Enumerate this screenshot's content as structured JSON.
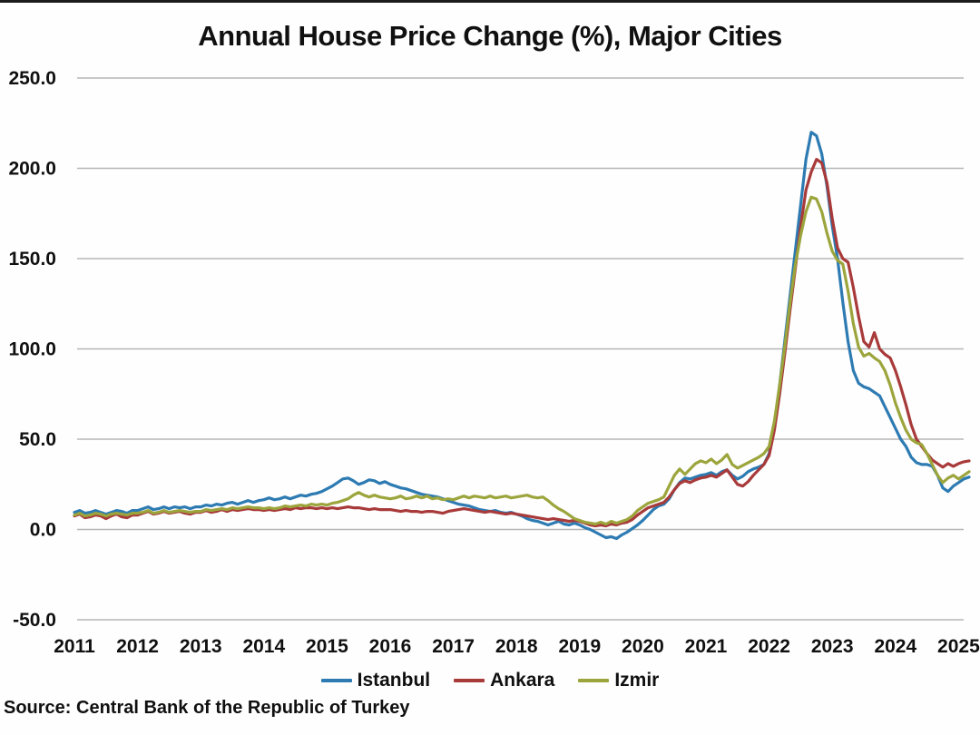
{
  "page": {
    "title": "Annual House Price Change (%), Major Cities",
    "source": "Source: Central Bank of the Republic of Turkey"
  },
  "chart_data": {
    "type": "line",
    "title": "Annual House Price Change (%), Major Cities",
    "xlabel": "",
    "ylabel": "",
    "ylim": [
      -50,
      250
    ],
    "ytick_step": 50,
    "ytick_decimals": 1,
    "x_years": [
      2011,
      2012,
      2013,
      2014,
      2015,
      2016,
      2017,
      2018,
      2019,
      2020,
      2021,
      2022,
      2023,
      2024,
      2025
    ],
    "points_per_year": 12,
    "start_year": 2011,
    "grid": "horizontal",
    "legend_position": "bottom",
    "grid_color": "#b5b5b5",
    "text_color": "#101010",
    "source": "Source: Central Bank of the Republic of Turkey",
    "series": [
      {
        "name": "Istanbul",
        "color": "#2d7bb2",
        "values": [
          9.5,
          10.5,
          9,
          9.5,
          10.5,
          9.5,
          8.5,
          9.5,
          10.5,
          10,
          9,
          10.5,
          10.5,
          11.5,
          12.5,
          11,
          11.5,
          12.5,
          11.5,
          12.5,
          12,
          12.5,
          11.5,
          12.5,
          12.5,
          13.5,
          13,
          14,
          13.5,
          14.5,
          15,
          14,
          15,
          16,
          15,
          16,
          16.5,
          17.5,
          16.5,
          17,
          18,
          17,
          18,
          19,
          18.5,
          19.5,
          20,
          21,
          22.5,
          24,
          26,
          28,
          28.5,
          27,
          25,
          26,
          27.5,
          27,
          25.5,
          26.5,
          25,
          24,
          23,
          22.5,
          21.5,
          20.5,
          19.5,
          19,
          18.5,
          18,
          17,
          16,
          15,
          14,
          13.5,
          13,
          12,
          11,
          10.5,
          10,
          10.5,
          9.5,
          9,
          9.5,
          8.5,
          7.5,
          6,
          5,
          4.5,
          3.5,
          2.5,
          3.5,
          4.5,
          3,
          2.5,
          3.5,
          2.5,
          1,
          0,
          -1.5,
          -3,
          -4.5,
          -4,
          -5,
          -3,
          -1.5,
          0.5,
          2.5,
          5,
          8,
          11,
          13,
          14,
          17,
          22,
          26,
          28.5,
          28,
          29,
          30,
          30.5,
          31.5,
          30,
          32,
          33,
          30,
          28,
          29.5,
          32,
          33.5,
          34.5,
          36,
          42,
          58,
          80,
          105,
          130,
          155,
          180,
          205,
          220,
          218,
          208,
          190,
          168,
          150,
          126,
          104,
          88,
          81,
          79,
          78,
          76,
          74,
          68,
          62,
          56,
          50,
          46,
          40,
          37,
          36,
          36,
          35,
          30,
          23,
          21,
          24,
          26,
          28,
          29
        ]
      },
      {
        "name": "Ankara",
        "color": "#a83a3a",
        "values": [
          7.5,
          8.5,
          6.5,
          7,
          8,
          7.5,
          6,
          7.5,
          8.5,
          7,
          6.5,
          8,
          8,
          9,
          10,
          8.5,
          9,
          10,
          9,
          9.5,
          10,
          9,
          8.5,
          9.5,
          9.5,
          10.5,
          9.5,
          10,
          11,
          10,
          11,
          10.5,
          11,
          11.5,
          11,
          11,
          10.5,
          11,
          10.5,
          11,
          11.5,
          11,
          12,
          11.5,
          12,
          12,
          11.5,
          12,
          11.5,
          12,
          11.5,
          12,
          12.5,
          12,
          12,
          11.5,
          11,
          11.5,
          11,
          11,
          11,
          10.5,
          10,
          10.5,
          10,
          10,
          9.5,
          10,
          10,
          9.5,
          9,
          10,
          10.5,
          11,
          11.5,
          11,
          10.5,
          10,
          9.5,
          10,
          9.5,
          9,
          8.5,
          9,
          8.5,
          8,
          7.5,
          7,
          6.5,
          6,
          5.5,
          6,
          5.5,
          5,
          4.5,
          5,
          4.5,
          3.5,
          2.5,
          2,
          2.5,
          2,
          3,
          2.5,
          3.5,
          4,
          5.5,
          8,
          10,
          12,
          13,
          14,
          15,
          18,
          22,
          25.5,
          27,
          26,
          27.5,
          28.5,
          29,
          30,
          29,
          31,
          33,
          29,
          25,
          24,
          26.5,
          30,
          33,
          36,
          41,
          55,
          75,
          98,
          122,
          145,
          168,
          188,
          198,
          205,
          203,
          192,
          172,
          156,
          150,
          148,
          134,
          118,
          104,
          101,
          109,
          100,
          97,
          95,
          88,
          79,
          69,
          58,
          50,
          46,
          42,
          38.5,
          36.5,
          34.5,
          36.5,
          35,
          36.5,
          37.5,
          38
        ]
      },
      {
        "name": "Izmir",
        "color": "#9ca53c",
        "values": [
          8,
          9,
          7.5,
          8,
          9,
          8.5,
          7.5,
          8.5,
          9,
          8.5,
          8,
          9,
          9,
          9.5,
          10.5,
          9,
          9.5,
          10.5,
          9.5,
          10,
          10.5,
          10,
          9.5,
          10,
          10,
          11,
          10.5,
          11,
          11.5,
          11,
          12,
          11.5,
          12,
          12.5,
          12,
          12,
          11.5,
          12,
          11.5,
          12,
          13,
          12.5,
          13,
          13.5,
          13,
          14,
          13.5,
          14,
          13.5,
          14.5,
          15,
          16,
          17,
          19,
          20.5,
          19,
          18,
          19,
          18,
          17.5,
          17,
          17.5,
          18.5,
          17,
          17.5,
          18.5,
          17.5,
          18.5,
          17,
          17.5,
          16.5,
          17,
          16.5,
          17.5,
          18.5,
          17.5,
          18.5,
          18,
          17.5,
          18.5,
          17.5,
          18,
          18.5,
          17.5,
          18,
          18.5,
          19,
          18,
          17.5,
          18,
          16,
          13.5,
          11.5,
          10,
          8,
          6,
          5,
          4,
          3.5,
          3,
          4,
          3,
          4.5,
          3.5,
          4.5,
          5.5,
          7.5,
          10.5,
          12.5,
          14.5,
          15.5,
          16.5,
          18,
          24,
          30,
          33.5,
          30.5,
          33.5,
          36.5,
          38,
          37,
          39,
          36.5,
          38.5,
          41.5,
          36,
          34,
          35.5,
          37,
          38.5,
          40,
          42,
          46,
          60,
          80,
          102,
          126,
          147,
          163,
          176,
          184,
          183,
          176,
          164,
          154,
          149,
          147,
          132,
          114,
          101,
          96,
          97.5,
          95,
          93,
          88,
          80,
          70,
          62,
          55,
          50,
          48,
          47,
          42,
          36,
          30,
          26,
          28.5,
          30,
          28,
          30,
          32
        ]
      }
    ]
  }
}
